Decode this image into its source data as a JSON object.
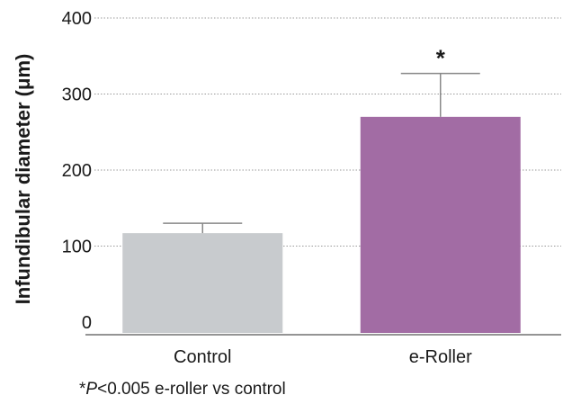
{
  "chart_data": {
    "type": "bar",
    "ylabel": "Infundibular diameter (μm)",
    "xlabel": "",
    "ylim": [
      0,
      400
    ],
    "yticks": [
      "0",
      "100",
      "200",
      "300",
      "400"
    ],
    "grid": true,
    "categories": [
      "Control",
      "e-Roller"
    ],
    "values": [
      117,
      270
    ],
    "errors": [
      13,
      57
    ],
    "significance": [
      "",
      "*"
    ],
    "colors": [
      "#c8cbce",
      "#a26ca4"
    ]
  },
  "footnote": {
    "asterisk": "*",
    "p": "P",
    "rest": "<0.005 e-roller vs control"
  }
}
